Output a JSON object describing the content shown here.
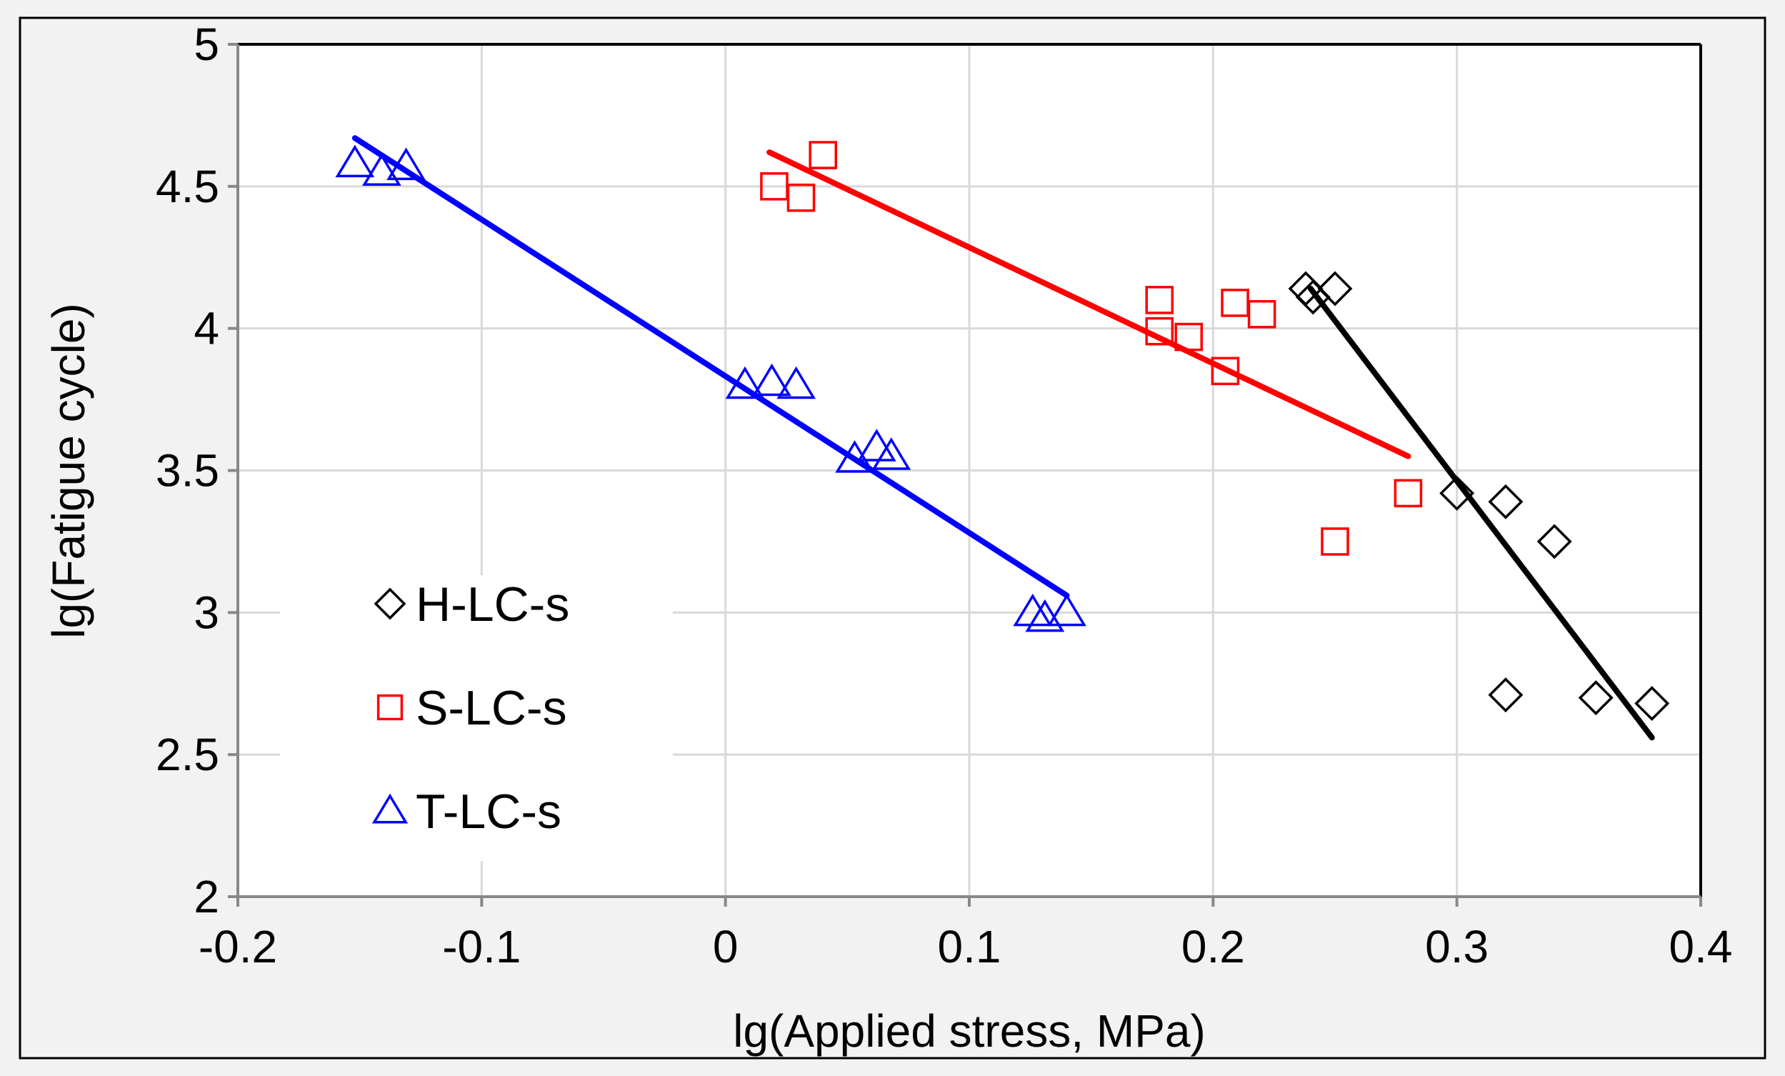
{
  "chart_data": {
    "type": "scatter",
    "title": "",
    "xlabel": "lg(Applied  stress, MPa)",
    "ylabel": "lg(Fatigue  cycle)",
    "xlim": [
      -0.2,
      0.4
    ],
    "ylim": [
      2,
      5
    ],
    "xticks": [
      -0.2,
      -0.1,
      0,
      0.1,
      0.2,
      0.3,
      0.4
    ],
    "yticks": [
      2,
      2.5,
      3,
      3.5,
      4,
      4.5,
      5
    ],
    "xtick_labels": [
      "-0.2",
      "-0.1",
      "0",
      "0.1",
      "0.2",
      "0.3",
      "0.4"
    ],
    "ytick_labels": [
      "2",
      "2.5",
      "3",
      "3.5",
      "4",
      "4.5",
      "5"
    ],
    "grid": true,
    "legend_position": "lower-left",
    "series": [
      {
        "name": "H-LC-s",
        "marker": "diamond",
        "color": "#000000",
        "points": [
          {
            "x": 0.238,
            "y": 4.14
          },
          {
            "x": 0.241,
            "y": 4.11
          },
          {
            "x": 0.25,
            "y": 4.14
          },
          {
            "x": 0.3,
            "y": 3.42
          },
          {
            "x": 0.32,
            "y": 3.39
          },
          {
            "x": 0.34,
            "y": 3.25
          },
          {
            "x": 0.32,
            "y": 2.71
          },
          {
            "x": 0.357,
            "y": 2.7
          },
          {
            "x": 0.38,
            "y": 2.68
          }
        ],
        "trendline": {
          "x": [
            0.24,
            0.38
          ],
          "y": [
            4.14,
            2.56
          ]
        }
      },
      {
        "name": "S-LC-s",
        "marker": "square",
        "color": "#ff0000",
        "points": [
          {
            "x": 0.02,
            "y": 4.5
          },
          {
            "x": 0.031,
            "y": 4.46
          },
          {
            "x": 0.04,
            "y": 4.61
          },
          {
            "x": 0.178,
            "y": 4.1
          },
          {
            "x": 0.178,
            "y": 3.99
          },
          {
            "x": 0.19,
            "y": 3.97
          },
          {
            "x": 0.209,
            "y": 4.09
          },
          {
            "x": 0.22,
            "y": 4.05
          },
          {
            "x": 0.205,
            "y": 3.85
          },
          {
            "x": 0.25,
            "y": 3.25
          },
          {
            "x": 0.28,
            "y": 3.42
          }
        ],
        "trendline": {
          "x": [
            0.018,
            0.28
          ],
          "y": [
            4.62,
            3.55
          ]
        }
      },
      {
        "name": "T-LC-s",
        "marker": "triangle",
        "color": "#0000ff",
        "points": [
          {
            "x": -0.152,
            "y": 4.58
          },
          {
            "x": -0.141,
            "y": 4.55
          },
          {
            "x": -0.131,
            "y": 4.57
          },
          {
            "x": 0.008,
            "y": 3.8
          },
          {
            "x": 0.019,
            "y": 3.81
          },
          {
            "x": 0.029,
            "y": 3.8
          },
          {
            "x": 0.053,
            "y": 3.54
          },
          {
            "x": 0.062,
            "y": 3.58
          },
          {
            "x": 0.068,
            "y": 3.55
          },
          {
            "x": 0.126,
            "y": 3.0
          },
          {
            "x": 0.131,
            "y": 2.98
          },
          {
            "x": 0.14,
            "y": 3.0
          }
        ],
        "trendline": {
          "x": [
            -0.152,
            0.14
          ],
          "y": [
            4.67,
            3.06
          ]
        }
      }
    ]
  }
}
